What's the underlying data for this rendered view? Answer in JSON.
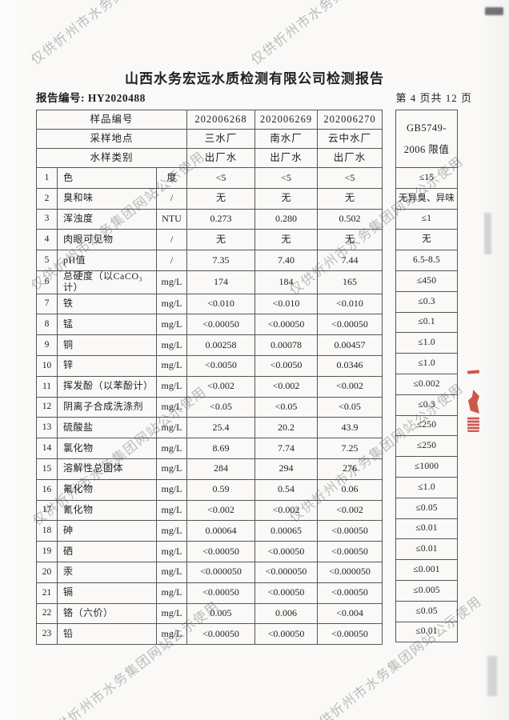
{
  "colors": {
    "watermark": "#8f8f8f",
    "seal": "#c63b2f",
    "border": "#565656",
    "ink": "#1f1f1f",
    "paper": "#faf9f7"
  },
  "watermark": {
    "text": "仅供忻州市水务集团网站公示使用"
  },
  "page": {
    "title": "山西水务宏远水质检测有限公司检测报告",
    "report_no_label": "报告编号:",
    "report_no": "HY2020488",
    "page_info": "第 4 页共 12 页"
  },
  "table": {
    "header": {
      "rows": [
        {
          "label": "样品编号",
          "values": [
            "202006268",
            "202006269",
            "202006270"
          ]
        },
        {
          "label": "采样地点",
          "values": [
            "三水厂",
            "南水厂",
            "云中水厂"
          ]
        },
        {
          "label": "水样类别",
          "values": [
            "出厂水",
            "出厂水",
            "出厂水"
          ]
        }
      ],
      "limit_title_line1": "GB5749-",
      "limit_title_line2": "2006 限值"
    },
    "rows": [
      {
        "no": "1",
        "name": "色",
        "unit": "度",
        "v1": "<5",
        "v2": "<5",
        "v3": "<5",
        "limit": "≤15"
      },
      {
        "no": "2",
        "name": "臭和味",
        "unit": "/",
        "v1": "无",
        "v2": "无",
        "v3": "无",
        "limit": "无异臭、异味"
      },
      {
        "no": "3",
        "name": "浑浊度",
        "unit": "NTU",
        "v1": "0.273",
        "v2": "0.280",
        "v3": "0.502",
        "limit": "≤1"
      },
      {
        "no": "4",
        "name": "肉眼可见物",
        "unit": "/",
        "v1": "无",
        "v2": "无",
        "v3": "无",
        "limit": "无"
      },
      {
        "no": "5",
        "name": "pH值",
        "unit": "/",
        "v1": "7.35",
        "v2": "7.40",
        "v3": "7.44",
        "limit": "6.5-8.5"
      },
      {
        "no": "6",
        "name": "总硬度（以CaCO₃计）",
        "unit": "mg/L",
        "v1": "174",
        "v2": "184",
        "v3": "165",
        "limit": "≤450"
      },
      {
        "no": "7",
        "name": "铁",
        "unit": "mg/L",
        "v1": "<0.010",
        "v2": "<0.010",
        "v3": "<0.010",
        "limit": "≤0.3"
      },
      {
        "no": "8",
        "name": "锰",
        "unit": "mg/L",
        "v1": "<0.00050",
        "v2": "<0.00050",
        "v3": "<0.00050",
        "limit": "≤0.1"
      },
      {
        "no": "9",
        "name": "铜",
        "unit": "mg/L",
        "v1": "0.00258",
        "v2": "0.00078",
        "v3": "0.00457",
        "limit": "≤1.0"
      },
      {
        "no": "10",
        "name": "锌",
        "unit": "mg/L",
        "v1": "<0.0050",
        "v2": "<0.0050",
        "v3": "0.0346",
        "limit": "≤1.0"
      },
      {
        "no": "11",
        "name": "挥发酚（以苯酚计）",
        "unit": "mg/L",
        "v1": "<0.002",
        "v2": "<0.002",
        "v3": "<0.002",
        "limit": "≤0.002"
      },
      {
        "no": "12",
        "name": "阴离子合成洗涤剂",
        "unit": "mg/L",
        "v1": "<0.05",
        "v2": "<0.05",
        "v3": "<0.05",
        "limit": "≤0.3"
      },
      {
        "no": "13",
        "name": "硫酸盐",
        "unit": "mg/L",
        "v1": "25.4",
        "v2": "20.2",
        "v3": "43.9",
        "limit": "≤250"
      },
      {
        "no": "14",
        "name": "氯化物",
        "unit": "mg/L",
        "v1": "8.69",
        "v2": "7.74",
        "v3": "7.25",
        "limit": "≤250"
      },
      {
        "no": "15",
        "name": "溶解性总固体",
        "unit": "mg/L",
        "v1": "284",
        "v2": "294",
        "v3": "276",
        "limit": "≤1000"
      },
      {
        "no": "16",
        "name": "氟化物",
        "unit": "mg/L",
        "v1": "0.59",
        "v2": "0.54",
        "v3": "0.06",
        "limit": "≤1.0"
      },
      {
        "no": "17",
        "name": "氰化物",
        "unit": "mg/L",
        "v1": "<0.002",
        "v2": "<0.002",
        "v3": "<0.002",
        "limit": "≤0.05"
      },
      {
        "no": "18",
        "name": "砷",
        "unit": "mg/L",
        "v1": "0.00064",
        "v2": "0.00065",
        "v3": "<0.00050",
        "limit": "≤0.01"
      },
      {
        "no": "19",
        "name": "硒",
        "unit": "mg/L",
        "v1": "<0.00050",
        "v2": "<0.00050",
        "v3": "<0.00050",
        "limit": "≤0.01"
      },
      {
        "no": "20",
        "name": "汞",
        "unit": "mg/L",
        "v1": "<0.000050",
        "v2": "<0.000050",
        "v3": "<0.000050",
        "limit": "≤0.001"
      },
      {
        "no": "21",
        "name": "镉",
        "unit": "mg/L",
        "v1": "<0.00050",
        "v2": "<0.00050",
        "v3": "<0.00050",
        "limit": "≤0.005"
      },
      {
        "no": "22",
        "name": "铬（六价）",
        "unit": "mg/L",
        "v1": "0.005",
        "v2": "0.006",
        "v3": "<0.004",
        "limit": "≤0.05"
      },
      {
        "no": "23",
        "name": "铅",
        "unit": "mg/L",
        "v1": "<0.00050",
        "v2": "<0.00050",
        "v3": "<0.00050",
        "limit": "≤0.01"
      }
    ]
  }
}
